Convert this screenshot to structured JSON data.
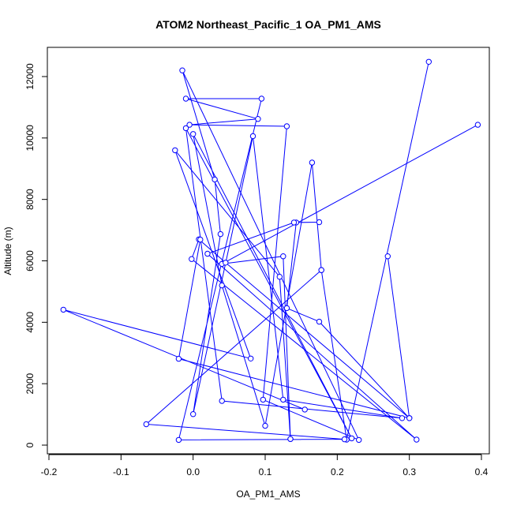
{
  "chart_data": {
    "type": "line",
    "title": "ATOM2 Northeast_Pacific_1 OA_PM1_AMS",
    "xlabel": "OA_PM1_AMS",
    "ylabel": "Altitude (m)",
    "xlim": [
      -0.2,
      0.4
    ],
    "ylim": [
      0,
      12000
    ],
    "x_ticks": [
      -0.2,
      -0.1,
      0.0,
      0.1,
      0.2,
      0.3,
      0.4
    ],
    "x_tick_labels": [
      "-0.2",
      "-0.1",
      "0.0",
      "0.1",
      "0.2",
      "0.3",
      "0.4"
    ],
    "y_ticks": [
      0,
      2000,
      4000,
      6000,
      8000,
      10000,
      12000
    ],
    "y_tick_labels": [
      "0",
      "2000",
      "4000",
      "6000",
      "8000",
      "10000",
      "12000"
    ],
    "grid": false,
    "series_color": "#0000ff",
    "marker": "open-circle",
    "series": [
      {
        "points": [
          [
            0.327,
            12480
          ],
          [
            0.213,
            180
          ],
          [
            0.178,
            5700
          ],
          [
            -0.065,
            680
          ],
          [
            0.21,
            190
          ],
          [
            -0.02,
            170
          ],
          [
            0.095,
            11280
          ],
          [
            -0.01,
            11280
          ],
          [
            0.09,
            10620
          ],
          [
            -0.005,
            10430
          ],
          [
            0.13,
            10380
          ],
          [
            0.097,
            1480
          ],
          [
            0.23,
            170
          ],
          [
            -0.015,
            12200
          ],
          [
            0.03,
            8650
          ],
          [
            0.038,
            6870
          ],
          [
            0.0,
            1010
          ],
          [
            0.083,
            10060
          ],
          [
            0.125,
            1480
          ],
          [
            0.29,
            880
          ],
          [
            0.04,
            1440
          ],
          [
            -0.01,
            10320
          ],
          [
            0.22,
            220
          ],
          [
            0.0,
            10130
          ],
          [
            0.04,
            5200
          ],
          [
            0.1,
            630
          ],
          [
            0.165,
            9200
          ],
          [
            0.178,
            5700
          ]
        ]
      },
      {
        "points": [
          [
            0.395,
            10430
          ],
          [
            0.04,
            5900
          ],
          [
            0.125,
            6150
          ],
          [
            0.135,
            200
          ],
          [
            0.135,
            200
          ],
          [
            0.12,
            5480
          ],
          [
            -0.025,
            9600
          ],
          [
            0.08,
            2820
          ],
          [
            -0.18,
            4410
          ],
          [
            0.155,
            1160
          ]
        ]
      },
      {
        "points": [
          [
            0.27,
            6150
          ],
          [
            0.3,
            880
          ],
          [
            0.175,
            4020
          ],
          [
            0.13,
            4460
          ],
          [
            0.143,
            7250
          ],
          [
            0.175,
            7260
          ],
          [
            0.14,
            7250
          ],
          [
            0.02,
            6230
          ],
          [
            0.31,
            180
          ],
          [
            -0.002,
            6060
          ],
          [
            0.008,
            6700
          ],
          [
            0.045,
            5940
          ],
          [
            0.3,
            880
          ],
          [
            -0.02,
            2810
          ],
          [
            0.01,
            6690
          ]
        ]
      }
    ]
  }
}
